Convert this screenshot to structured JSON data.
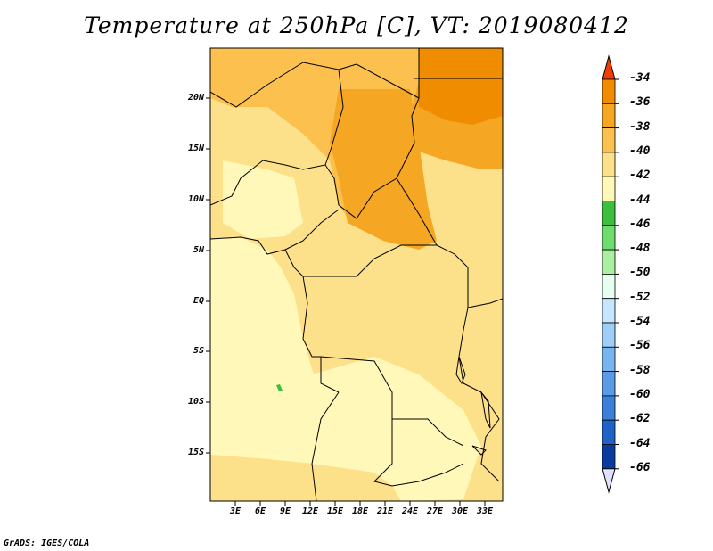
{
  "title": "Temperature at 250hPa [C], VT: 2019080412",
  "credit": "GrADS: IGES/COLA",
  "map": {
    "y_ticks": [
      "20N",
      "15N",
      "10N",
      "5N",
      "EQ",
      "5S",
      "10S",
      "15S"
    ],
    "x_ticks": [
      "3E",
      "6E",
      "9E",
      "12E",
      "15E",
      "18E",
      "21E",
      "24E",
      "27E",
      "30E",
      "33E"
    ]
  },
  "colorbar": {
    "labels": [
      "-34",
      "-36",
      "-38",
      "-40",
      "-42",
      "-44",
      "-46",
      "-48",
      "-50",
      "-52",
      "-54",
      "-56",
      "-58",
      "-60",
      "-62",
      "-64",
      "-66"
    ],
    "colors": [
      "#f05a00",
      "#f08c00",
      "#f5a623",
      "#fbc04e",
      "#fde08a",
      "#fff8b8",
      "#3cbf3c",
      "#6fdc6f",
      "#aaf0a0",
      "#e6fff0",
      "#c6e6ff",
      "#9ecdf5",
      "#78b4ee",
      "#5a9be6",
      "#3c80dc",
      "#1e64c8",
      "#0a3ca0",
      "#0a1a78"
    ],
    "top_color": "#f03c00",
    "bottom_color": "#e0e0ff"
  }
}
